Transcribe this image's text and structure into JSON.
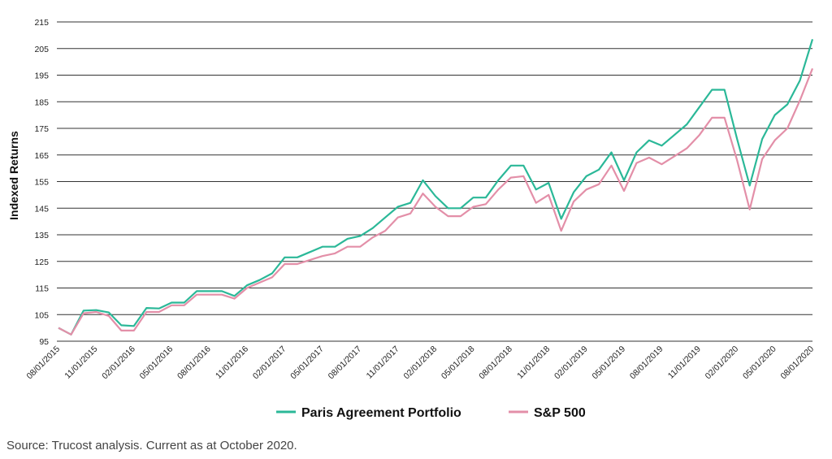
{
  "chart_data": {
    "type": "line",
    "ylabel": "Indexed Returns",
    "ylim": [
      95,
      215
    ],
    "yticks": [
      95,
      105,
      115,
      125,
      135,
      145,
      155,
      165,
      175,
      185,
      195,
      205,
      215
    ],
    "grid": true,
    "legend_position": "bottom-center",
    "x_tick_labels": [
      "08/01/2015",
      "11/01/2015",
      "02/01/2016",
      "05/01/2016",
      "08/01/2016",
      "11/01/2016",
      "02/01/2017",
      "05/01/2017",
      "08/01/2017",
      "11/01/2017",
      "02/01/2018",
      "05/01/2018",
      "08/01/2018",
      "11/01/2018",
      "02/01/2019",
      "05/01/2019",
      "08/01/2019",
      "11/01/2019",
      "02/01/2020",
      "05/01/2020",
      "08/01/2020"
    ],
    "x": [
      "08/2015",
      "09/2015",
      "10/2015",
      "11/2015",
      "12/2015",
      "01/2016",
      "02/2016",
      "03/2016",
      "04/2016",
      "05/2016",
      "06/2016",
      "07/2016",
      "08/2016",
      "09/2016",
      "10/2016",
      "11/2016",
      "12/2016",
      "01/2017",
      "02/2017",
      "03/2017",
      "04/2017",
      "05/2017",
      "06/2017",
      "07/2017",
      "08/2017",
      "09/2017",
      "10/2017",
      "11/2017",
      "12/2017",
      "01/2018",
      "02/2018",
      "03/2018",
      "04/2018",
      "05/2018",
      "06/2018",
      "07/2018",
      "08/2018",
      "09/2018",
      "10/2018",
      "11/2018",
      "12/2018",
      "01/2019",
      "02/2019",
      "03/2019",
      "04/2019",
      "05/2019",
      "06/2019",
      "07/2019",
      "08/2019",
      "09/2019",
      "10/2019",
      "11/2019",
      "12/2019",
      "01/2020",
      "02/2020",
      "03/2020",
      "04/2020",
      "05/2020",
      "06/2020",
      "07/2020",
      "08/2020"
    ],
    "series": [
      {
        "name": "Paris Agreement Portfolio",
        "color": "#2bb898",
        "values": [
          100,
          97.5,
          106.5,
          106.7,
          105.8,
          101,
          100.7,
          107.5,
          107.3,
          109.5,
          109.5,
          113.8,
          113.8,
          113.8,
          112,
          116,
          118,
          120.5,
          126.5,
          126.5,
          128.5,
          130.5,
          130.5,
          133.5,
          134.5,
          137.5,
          141.5,
          145.5,
          147,
          155.5,
          149.5,
          145,
          145,
          149,
          149,
          155.5,
          161,
          161,
          152,
          154.5,
          141,
          151,
          157,
          159.5,
          166,
          155.5,
          166,
          170.5,
          168.5,
          172.5,
          176.5,
          183,
          189.5,
          189.5,
          171,
          153.5,
          171,
          180,
          184,
          193,
          208.5
        ]
      },
      {
        "name": "S&P 500",
        "color": "#e38fa8",
        "values": [
          100,
          97.5,
          105.5,
          106,
          104.5,
          99,
          99,
          106,
          106,
          108.5,
          108.5,
          112.5,
          112.5,
          112.5,
          111,
          115,
          117,
          119,
          124,
          124,
          125.5,
          127,
          128,
          130.5,
          130.5,
          134,
          136.5,
          141.5,
          143,
          150.5,
          145.5,
          142,
          142,
          145.5,
          146.5,
          152,
          156.5,
          157,
          147,
          150,
          136.5,
          147.5,
          152,
          154,
          161,
          151.5,
          162,
          164,
          161.5,
          164.5,
          167.5,
          172.5,
          179,
          179,
          163,
          144.5,
          163.5,
          170.5,
          175,
          185.5,
          197.5
        ]
      }
    ]
  },
  "footer": {
    "source": "Source: Trucost analysis. Current as at October 2020."
  }
}
